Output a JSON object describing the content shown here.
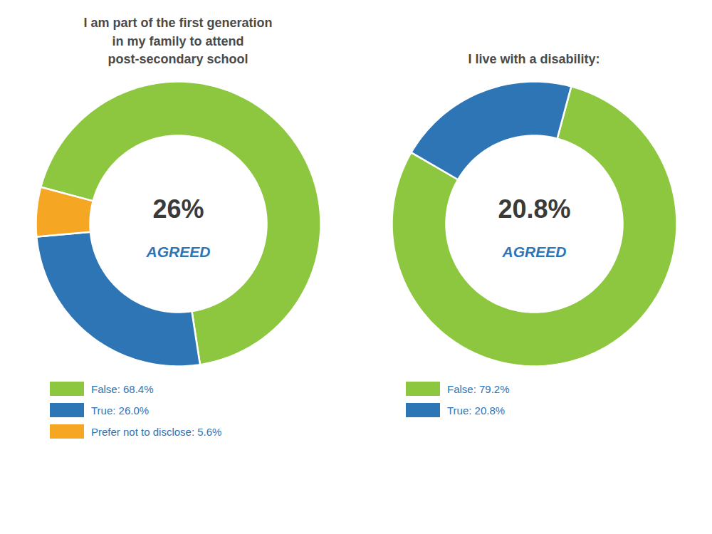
{
  "chart_data": [
    {
      "type": "pie",
      "title": "I am part of the first generation\nin my family to attend\npost-secondary school",
      "categories": [
        "False: 68.4%",
        "True: 26.0%",
        "Prefer not to disclose: 5.6%"
      ],
      "values": [
        68.4,
        26.0,
        5.6
      ],
      "colors": [
        "#8dc63f",
        "#2e75b6",
        "#f5a623"
      ],
      "annotations": [
        "26%",
        "AGREED"
      ],
      "legend": "bottom"
    },
    {
      "type": "pie",
      "title": "I live with a disability:",
      "categories": [
        "False: 79.2%",
        "True: 20.8%"
      ],
      "values": [
        79.2,
        20.8
      ],
      "colors": [
        "#8dc63f",
        "#2e75b6"
      ],
      "annotations": [
        "20.8%",
        "AGREED"
      ],
      "legend": "bottom"
    }
  ]
}
